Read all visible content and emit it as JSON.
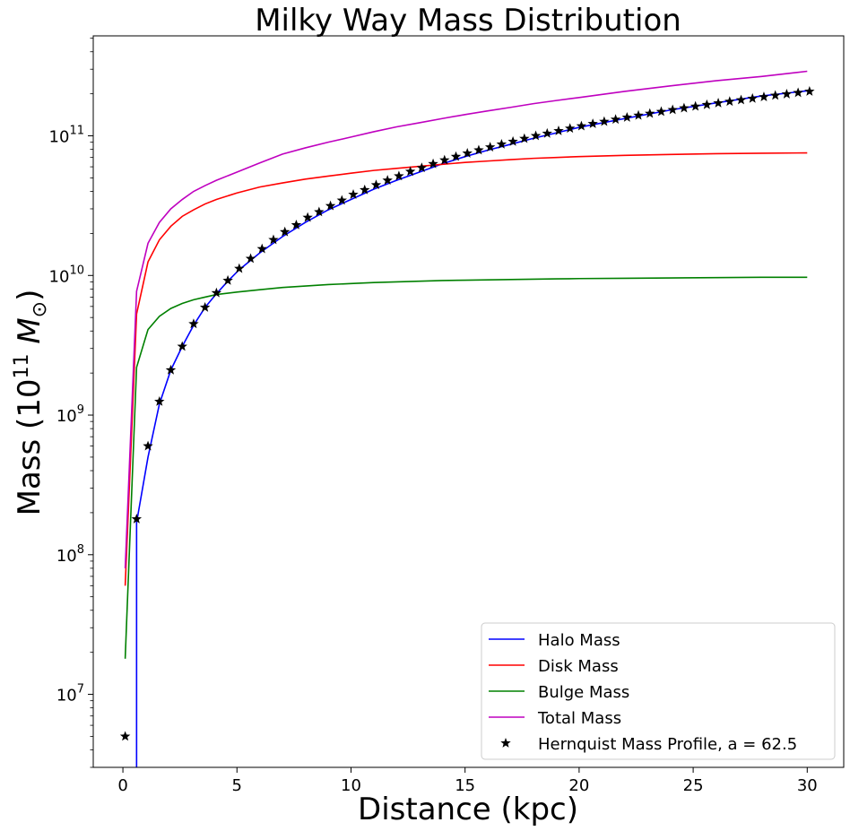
{
  "chart_data": {
    "type": "line",
    "title": "Milky Way Mass Distribution",
    "xlabel": "Distance (kpc)",
    "ylabel_prefix": "Mass (10",
    "ylabel_exp": "11",
    "ylabel_unit": "M",
    "ylabel_sub": "⊙",
    "ylabel_suffix": ")",
    "yscale": "log",
    "xlim": [
      -1.3,
      31.6
    ],
    "ylim": [
      3000000,
      520000000000
    ],
    "xticks": [
      {
        "value": 0,
        "label": "0"
      },
      {
        "value": 5,
        "label": "5"
      },
      {
        "value": 10,
        "label": "10"
      },
      {
        "value": 15,
        "label": "15"
      },
      {
        "value": 20,
        "label": "20"
      },
      {
        "value": 25,
        "label": "25"
      },
      {
        "value": 30,
        "label": "30"
      }
    ],
    "yticks": [
      {
        "value": 10000000,
        "base": "10",
        "exp": "7"
      },
      {
        "value": 100000000,
        "base": "10",
        "exp": "8"
      },
      {
        "value": 1000000000,
        "base": "10",
        "exp": "9"
      },
      {
        "value": 10000000000,
        "base": "10",
        "exp": "10"
      },
      {
        "value": 100000000000,
        "base": "10",
        "exp": "11"
      }
    ],
    "grid": false,
    "legend_position": "lower-right",
    "series": [
      {
        "name": "Halo Mass",
        "kind": "line",
        "color": "#0000ff",
        "x": [
          0.6,
          1.1,
          1.6,
          2.1,
          2.6,
          3.1,
          3.6,
          4.1,
          4.6,
          5.1,
          6,
          7,
          8,
          9,
          10,
          11,
          12,
          13,
          14,
          15,
          16,
          17,
          18,
          19,
          20,
          22,
          24,
          26,
          28,
          30
        ],
        "y": [
          170000000,
          500000000,
          1200000000,
          2100000000,
          3100000000,
          4400000000,
          5900000000,
          7400000000,
          9100000000,
          11000000000,
          14500000000,
          19000000000,
          24000000000,
          29500000000,
          35000000000,
          41500000000,
          48000000000,
          55000000000,
          63000000000,
          71000000000,
          79000000000,
          87000000000,
          96000000000,
          105000000000,
          115000000000,
          133000000000,
          153000000000,
          172000000000,
          193000000000,
          210000000000
        ]
      },
      {
        "name": "Disk Mass",
        "kind": "line",
        "color": "#ff0000",
        "x": [
          0.1,
          0.6,
          1.1,
          1.6,
          2.1,
          2.6,
          3.1,
          3.6,
          4.1,
          5,
          6,
          7,
          8,
          9,
          10,
          11,
          12,
          13,
          14,
          15,
          16,
          17,
          18,
          19,
          20,
          22,
          24,
          26,
          28,
          30
        ],
        "y": [
          60000000,
          5300000000,
          12500000000,
          18000000000,
          22500000000,
          26500000000,
          29500000000,
          32500000000,
          35000000000,
          39000000000,
          43000000000,
          46000000000,
          49000000000,
          51500000000,
          54000000000,
          56500000000,
          58500000000,
          60500000000,
          62500000000,
          64500000000,
          66000000000,
          67500000000,
          69000000000,
          70000000000,
          71000000000,
          72500000000,
          73500000000,
          74500000000,
          75000000000,
          75500000000
        ]
      },
      {
        "name": "Bulge Mass",
        "kind": "line",
        "color": "#008000",
        "x": [
          0.1,
          0.6,
          1.1,
          1.6,
          2.1,
          2.6,
          3.1,
          3.6,
          4.1,
          5,
          6,
          7,
          8,
          9,
          10,
          11,
          12,
          13,
          14,
          15,
          16,
          17,
          18,
          19,
          20,
          22,
          24,
          26,
          28,
          30
        ],
        "y": [
          18000000,
          2200000000,
          4100000000,
          5100000000,
          5800000000,
          6300000000,
          6700000000,
          7000000000,
          7300000000,
          7600000000,
          7900000000,
          8200000000,
          8400000000,
          8600000000,
          8750000000,
          8900000000,
          9000000000,
          9100000000,
          9200000000,
          9250000000,
          9300000000,
          9350000000,
          9400000000,
          9450000000,
          9500000000,
          9550000000,
          9600000000,
          9650000000,
          9700000000,
          9700000000
        ]
      },
      {
        "name": "Total Mass",
        "kind": "line",
        "color": "#bf00bf",
        "x": [
          0.1,
          0.6,
          1.1,
          1.6,
          2.1,
          2.6,
          3.1,
          3.6,
          4.1,
          5,
          6,
          7,
          8,
          9,
          10,
          11,
          12,
          13,
          14,
          15,
          16,
          17,
          18,
          19,
          20,
          22,
          24,
          26,
          28,
          30
        ],
        "y": [
          80000000,
          7700000000,
          17000000000,
          24000000000,
          30000000000,
          35000000000,
          40000000000,
          44000000000,
          48000000000,
          55000000000,
          64000000000,
          74000000000,
          82000000000,
          90000000000,
          98000000000,
          107000000000,
          116000000000,
          124000000000,
          133000000000,
          142000000000,
          151000000000,
          160000000000,
          170000000000,
          179000000000,
          188000000000,
          208000000000,
          228000000000,
          248000000000,
          266000000000,
          290000000000
        ]
      },
      {
        "name": "Hernquist Mass Profile, a = 62.5",
        "kind": "scatter",
        "marker": "star",
        "color": "#000000",
        "x": [
          0.1,
          0.6,
          1.1,
          1.6,
          2.1,
          2.6,
          3.1,
          3.6,
          4.1,
          4.6,
          5.1,
          5.6,
          6.1,
          6.6,
          7.1,
          7.6,
          8.1,
          8.6,
          9.1,
          9.6,
          10.1,
          10.6,
          11.1,
          11.6,
          12.1,
          12.6,
          13.1,
          13.6,
          14.1,
          14.6,
          15.1,
          15.6,
          16.1,
          16.6,
          17.1,
          17.6,
          18.1,
          18.6,
          19.1,
          19.6,
          20.1,
          20.6,
          21.1,
          21.6,
          22.1,
          22.6,
          23.1,
          23.6,
          24.1,
          24.6,
          25.1,
          25.6,
          26.1,
          26.6,
          27.1,
          27.6,
          28.1,
          28.6,
          29.1,
          29.6,
          30.1
        ],
        "y": [
          5000000,
          180000000,
          600000000,
          1250000000,
          2100000000,
          3100000000,
          4500000000,
          5900000000,
          7500000000,
          9200000000,
          11200000000,
          13200000000,
          15500000000,
          18000000000,
          20500000000,
          23000000000,
          26000000000,
          28500000000,
          31500000000,
          34500000000,
          38000000000,
          41000000000,
          44500000000,
          48000000000,
          51500000000,
          55500000000,
          59000000000,
          63000000000,
          67000000000,
          71000000000,
          75000000000,
          79000000000,
          83000000000,
          87000000000,
          91000000000,
          95500000000,
          100000000000,
          104000000000,
          108500000000,
          113000000000,
          117500000000,
          122000000000,
          126500000000,
          131000000000,
          135500000000,
          140000000000,
          144500000000,
          149000000000,
          153500000000,
          158000000000,
          162500000000,
          167000000000,
          171500000000,
          176000000000,
          180500000000,
          185000000000,
          190000000000,
          194500000000,
          199000000000,
          203500000000,
          208000000000
        ]
      }
    ]
  }
}
